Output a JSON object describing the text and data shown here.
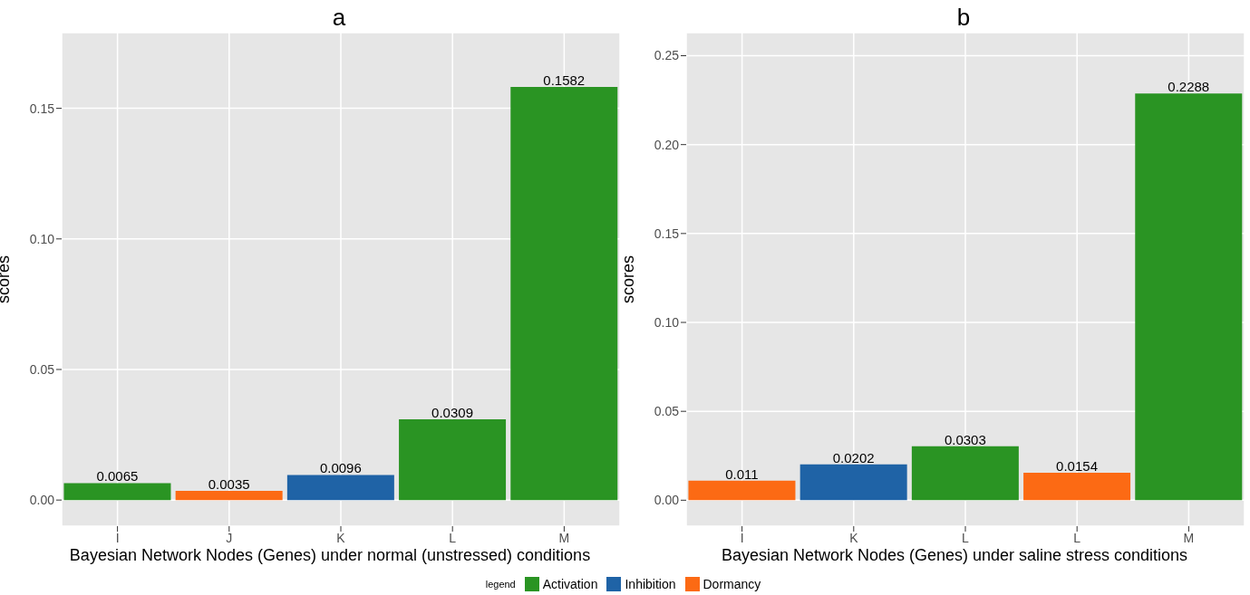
{
  "chart_data": [
    {
      "type": "bar",
      "title": "a",
      "xlabel": "Bayesian Network Nodes (Genes) under normal (unstressed)  conditions",
      "ylabel": "scores",
      "categories": [
        "I",
        "J",
        "K",
        "L",
        "M"
      ],
      "stacked": true,
      "series": [
        {
          "name": "Activation",
          "color": "#2a9423",
          "values": [
            0.0065,
            null,
            null,
            0.0309,
            0.1582
          ]
        },
        {
          "name": "Inhibition",
          "color": "#1f63a6",
          "values": [
            null,
            null,
            0.0096,
            null,
            null
          ]
        },
        {
          "name": "Dormancy",
          "color": "#fc6a14",
          "values": [
            null,
            0.0035,
            null,
            null,
            null
          ]
        }
      ],
      "ylim": [
        -0.01,
        0.179
      ],
      "yticks": [
        {
          "value": 0,
          "label": "0.00"
        },
        {
          "value": 0.05,
          "label": "0.05"
        },
        {
          "value": 0.1,
          "label": "0.10"
        },
        {
          "value": 0.15,
          "label": "0.15"
        }
      ],
      "grid": true,
      "data_labels": true,
      "legend": "bottom",
      "legend_title": "legend"
    },
    {
      "type": "bar",
      "title": "b",
      "xlabel": "Bayesian Network Nodes (Genes) under saline stress conditions",
      "ylabel": "scores",
      "categories": [
        "I",
        "K",
        "L",
        "L",
        "M"
      ],
      "stacked": true,
      "series": [
        {
          "color": "#2a9423",
          "values": [
            null,
            null,
            0.0303,
            null,
            0.2288
          ]
        },
        {
          "color": "#1f63a6",
          "values": [
            null,
            0.0202,
            null,
            null,
            null
          ]
        },
        {
          "color": "#fc6a14",
          "values": [
            0.011,
            null,
            null,
            0.0154,
            null
          ]
        }
      ],
      "ylim": [
        -0.0146,
        0.263
      ],
      "yticks": [
        {
          "value": 0,
          "label": "0.00"
        },
        {
          "value": 0.05,
          "label": "0.05"
        },
        {
          "value": 0.1,
          "label": "0.10"
        },
        {
          "value": 0.15,
          "label": "0.15"
        },
        {
          "value": 0.2,
          "label": "0.20"
        },
        {
          "value": 0.25,
          "label": "0.25"
        }
      ],
      "grid": true,
      "data_labels": true
    }
  ]
}
